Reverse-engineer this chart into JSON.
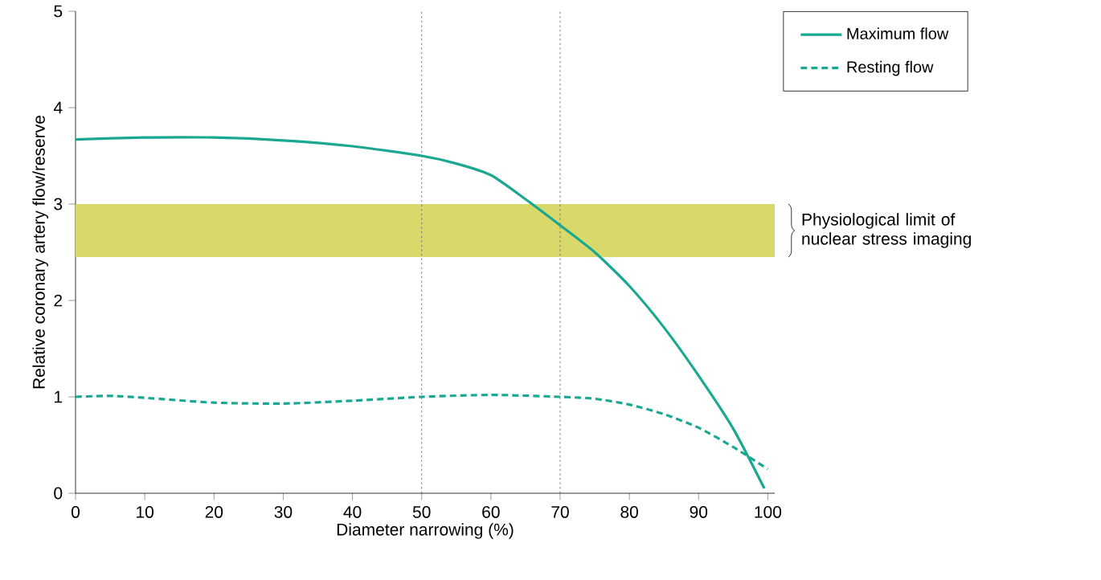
{
  "chart_data": {
    "type": "line",
    "xlabel": "Diameter narrowing (%)",
    "ylabel": "Relative coronary artery flow/reserve",
    "xlim": [
      0,
      101
    ],
    "ylim": [
      0,
      5
    ],
    "xticks": [
      0,
      10,
      20,
      30,
      40,
      50,
      60,
      70,
      80,
      90,
      100
    ],
    "yticks": [
      0,
      1,
      2,
      3,
      4,
      5
    ],
    "legend": "top right",
    "grid": false,
    "series": [
      {
        "name": "Maximum flow",
        "color": "#1aa892",
        "line_style": "solid",
        "x": [
          0,
          10,
          20,
          30,
          40,
          50,
          55,
          60,
          65,
          70,
          75,
          80,
          85,
          90,
          95,
          99.5
        ],
        "values": [
          3.67,
          3.69,
          3.69,
          3.66,
          3.6,
          3.5,
          3.42,
          3.3,
          3.05,
          2.78,
          2.5,
          2.15,
          1.72,
          1.22,
          0.67,
          0.05
        ]
      },
      {
        "name": "Resting flow",
        "color": "#1aa892",
        "line_style": "dashed",
        "x": [
          0,
          5,
          10,
          20,
          30,
          40,
          50,
          60,
          70,
          75,
          80,
          85,
          90,
          95,
          100
        ],
        "values": [
          1.0,
          1.01,
          0.99,
          0.94,
          0.93,
          0.96,
          1.0,
          1.02,
          1.0,
          0.98,
          0.92,
          0.82,
          0.68,
          0.48,
          0.25
        ]
      }
    ],
    "ref_lines": [
      {
        "axis": "x",
        "value": 50,
        "color": "#4a6070",
        "line_style": "dotted"
      },
      {
        "axis": "x",
        "value": 70,
        "color": "#4a6070",
        "line_style": "dotted"
      }
    ],
    "bands": [
      {
        "axis": "y",
        "from": 2.45,
        "to": 3.0,
        "label": "Physiological limit of nuclear stress imaging",
        "color": "#d9d86a"
      }
    ]
  }
}
